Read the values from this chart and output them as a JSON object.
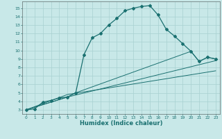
{
  "title": "",
  "xlabel": "Humidex (Indice chaleur)",
  "bg_color": "#c8e8e8",
  "line_color": "#1a7070",
  "grid_color": "#a8d0d0",
  "xlim": [
    -0.5,
    23.5
  ],
  "ylim": [
    2.5,
    15.8
  ],
  "xticks": [
    0,
    1,
    2,
    3,
    4,
    5,
    6,
    7,
    8,
    9,
    10,
    11,
    12,
    13,
    14,
    15,
    16,
    17,
    18,
    19,
    20,
    21,
    22,
    23
  ],
  "yticks": [
    3,
    4,
    5,
    6,
    7,
    8,
    9,
    10,
    11,
    12,
    13,
    14,
    15
  ],
  "line1_x": [
    0,
    1,
    2,
    3,
    4,
    5,
    6,
    7,
    8,
    9,
    10,
    11,
    12,
    13,
    14,
    15,
    16,
    17,
    18,
    19,
    20,
    21,
    22,
    23
  ],
  "line1_y": [
    3,
    3.1,
    3.9,
    4.1,
    4.4,
    4.5,
    5.0,
    9.5,
    11.5,
    12.0,
    13.0,
    13.8,
    14.7,
    15.0,
    15.2,
    15.3,
    14.2,
    12.5,
    11.7,
    10.8,
    9.9,
    8.7,
    9.2,
    9.0
  ],
  "line2_x": [
    0,
    5,
    6,
    20,
    21,
    22,
    23
  ],
  "line2_y": [
    3,
    4.5,
    5.0,
    9.9,
    8.7,
    9.2,
    9.0
  ],
  "line3_x": [
    0,
    5,
    23
  ],
  "line3_y": [
    3,
    4.5,
    8.8
  ],
  "line4_x": [
    0,
    5,
    23
  ],
  "line4_y": [
    3,
    4.8,
    7.6
  ]
}
